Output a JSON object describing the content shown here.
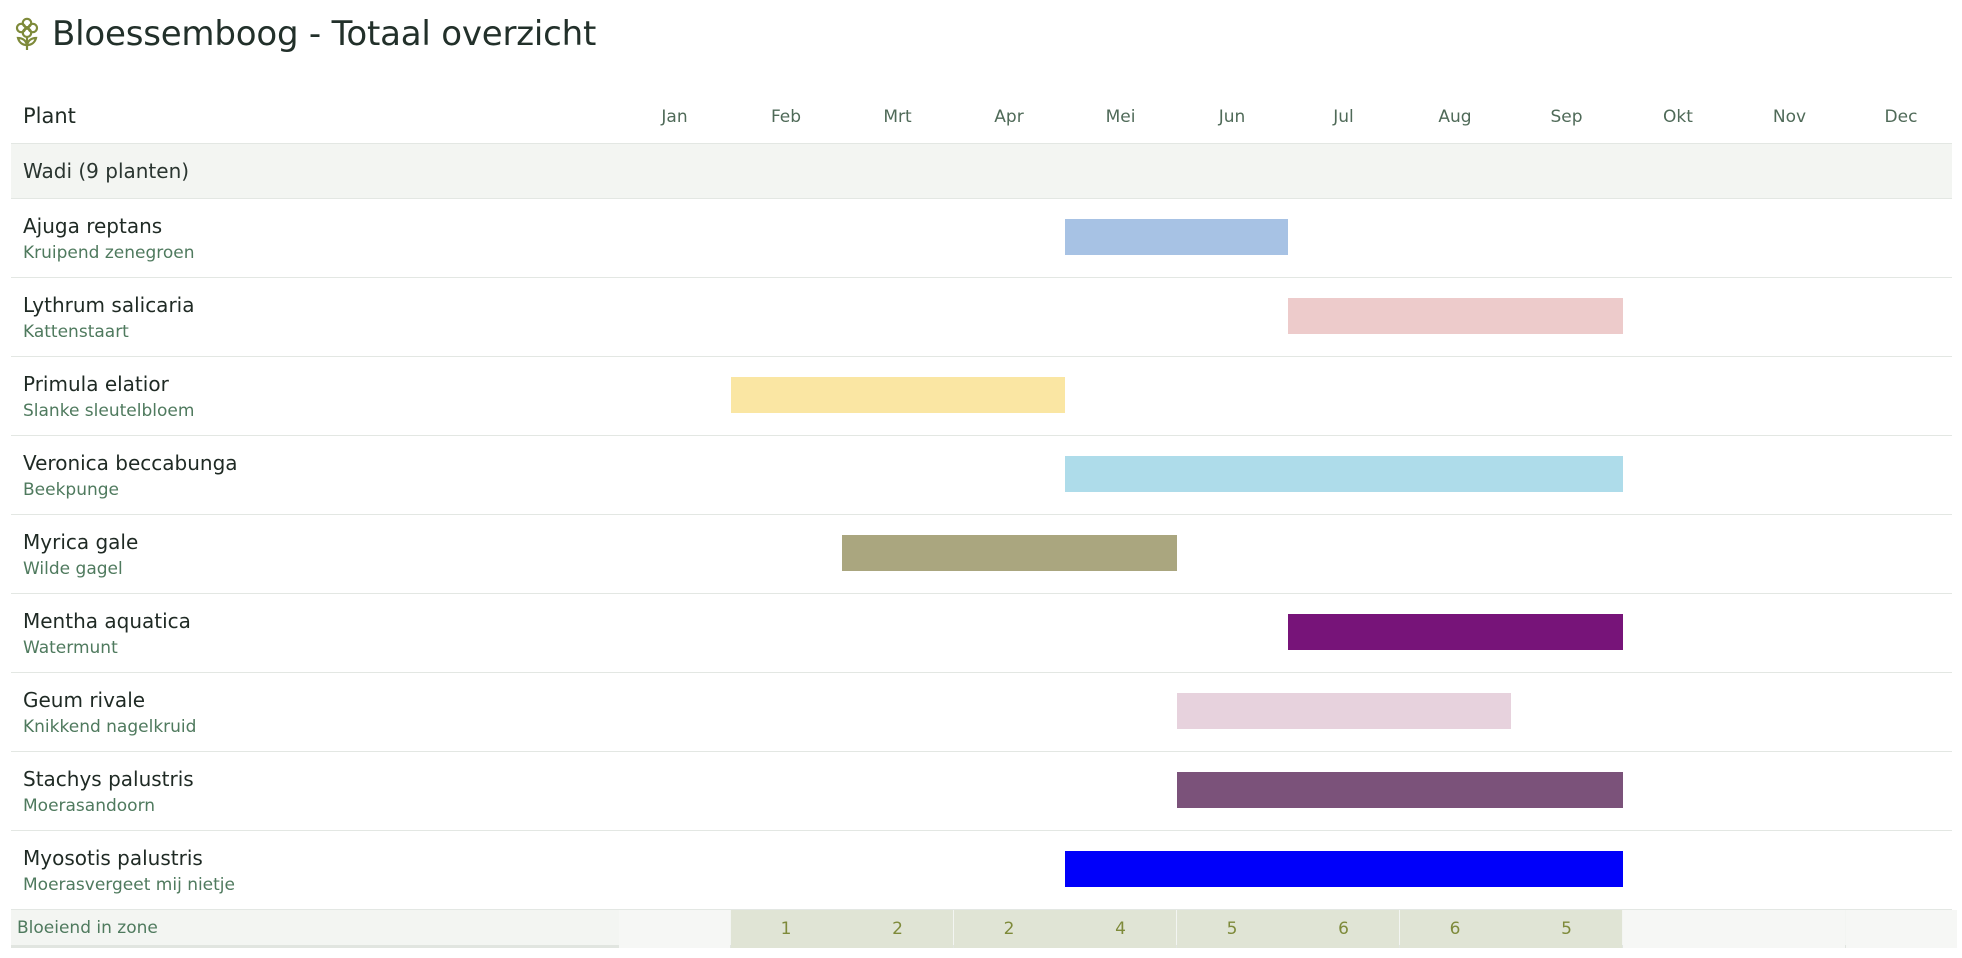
{
  "title": "Bloessemboog - Totaal overzicht",
  "icon": "flower-icon",
  "chart_data": {
    "type": "gantt",
    "header_plant": "Plant",
    "months": [
      "Jan",
      "Feb",
      "Mrt",
      "Apr",
      "Mei",
      "Jun",
      "Jul",
      "Aug",
      "Sep",
      "Okt",
      "Nov",
      "Dec"
    ],
    "groups": [
      {
        "label": "Wadi (9 planten)",
        "plants": [
          {
            "name": "Ajuga reptans",
            "common": "Kruipend zenegroen",
            "start": 5,
            "end": 6,
            "color": "#a7c2e4"
          },
          {
            "name": "Lythrum salicaria",
            "common": "Kattenstaart",
            "start": 7,
            "end": 9,
            "color": "#edcbcb"
          },
          {
            "name": "Primula elatior",
            "common": "Slanke sleutelbloem",
            "start": 2,
            "end": 4,
            "color": "#fae6a3"
          },
          {
            "name": "Veronica beccabunga",
            "common": "Beekpunge",
            "start": 5,
            "end": 9,
            "color": "#aedcea"
          },
          {
            "name": "Myrica gale",
            "common": "Wilde gagel",
            "start": 3,
            "end": 5,
            "color": "#aaa67f"
          },
          {
            "name": "Mentha aquatica",
            "common": "Watermunt",
            "start": 7,
            "end": 9,
            "color": "#771479"
          },
          {
            "name": "Geum rivale",
            "common": "Knikkend nagelkruid",
            "start": 6,
            "end": 8,
            "color": "#e7d2dd"
          },
          {
            "name": "Stachys palustris",
            "common": "Moerasandoorn",
            "start": 6,
            "end": 9,
            "color": "#7b527a"
          },
          {
            "name": "Myosotis palustris",
            "common": "Moerasvergeet mij nietje",
            "start": 5,
            "end": 9,
            "color": "#0000fa"
          }
        ]
      }
    ],
    "footer": {
      "label": "Bloeiend in zone",
      "counts": [
        null,
        "1",
        "2",
        "2",
        "4",
        "5",
        "6",
        "6",
        "5",
        null,
        null,
        null
      ]
    }
  }
}
